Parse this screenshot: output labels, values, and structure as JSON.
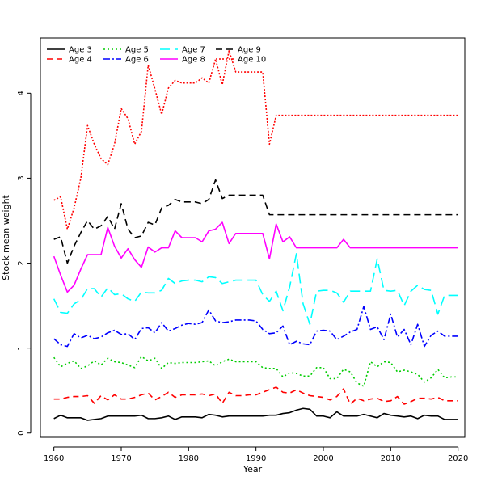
{
  "chart_data": {
    "type": "line",
    "xlabel": "Year",
    "ylabel": "Stock mean weight",
    "xlim": [
      1958,
      2021
    ],
    "ylim": [
      -0.05,
      4.65
    ],
    "xticks": [
      1960,
      1970,
      1980,
      1990,
      2000,
      2010,
      2020
    ],
    "yticks": [
      0,
      1,
      2,
      3,
      4
    ],
    "grid": false,
    "legend_position": "top-left",
    "x": [
      1960,
      1961,
      1962,
      1963,
      1964,
      1965,
      1966,
      1967,
      1968,
      1969,
      1970,
      1971,
      1972,
      1973,
      1974,
      1975,
      1976,
      1977,
      1978,
      1979,
      1980,
      1981,
      1982,
      1983,
      1984,
      1985,
      1986,
      1987,
      1988,
      1989,
      1990,
      1991,
      1992,
      1993,
      1994,
      1995,
      1996,
      1997,
      1998,
      1999,
      2000,
      2001,
      2002,
      2003,
      2004,
      2005,
      2006,
      2007,
      2008,
      2009,
      2010,
      2011,
      2012,
      2013,
      2014,
      2015,
      2016,
      2017,
      2018,
      2019,
      2020
    ],
    "series": [
      {
        "name": "Age 3",
        "color": "#000000",
        "dash": "solid",
        "values": [
          0.17,
          0.21,
          0.18,
          0.18,
          0.18,
          0.15,
          0.16,
          0.17,
          0.2,
          0.2,
          0.2,
          0.2,
          0.2,
          0.21,
          0.17,
          0.17,
          0.18,
          0.2,
          0.16,
          0.19,
          0.19,
          0.19,
          0.18,
          0.22,
          0.21,
          0.19,
          0.2,
          0.2,
          0.2,
          0.2,
          0.2,
          0.2,
          0.21,
          0.21,
          0.23,
          0.24,
          0.27,
          0.29,
          0.28,
          0.2,
          0.2,
          0.18,
          0.25,
          0.2,
          0.2,
          0.2,
          0.22,
          0.2,
          0.18,
          0.23,
          0.21,
          0.2,
          0.19,
          0.2,
          0.17,
          0.21,
          0.2,
          0.2,
          0.16,
          0.16,
          0.16
        ]
      },
      {
        "name": "Age 4",
        "color": "#ff0000",
        "dash": "7,5",
        "values": [
          0.4,
          0.4,
          0.42,
          0.43,
          0.43,
          0.44,
          0.35,
          0.44,
          0.39,
          0.45,
          0.4,
          0.4,
          0.42,
          0.45,
          0.47,
          0.39,
          0.43,
          0.48,
          0.42,
          0.45,
          0.45,
          0.45,
          0.46,
          0.44,
          0.46,
          0.35,
          0.48,
          0.44,
          0.44,
          0.45,
          0.45,
          0.48,
          0.51,
          0.54,
          0.48,
          0.47,
          0.51,
          0.47,
          0.44,
          0.43,
          0.42,
          0.39,
          0.43,
          0.52,
          0.34,
          0.41,
          0.38,
          0.4,
          0.41,
          0.37,
          0.38,
          0.43,
          0.34,
          0.37,
          0.41,
          0.41,
          0.4,
          0.42,
          0.38,
          0.38,
          0.38
        ]
      },
      {
        "name": "Age 5",
        "color": "#00cc00",
        "dash": "2,3",
        "values": [
          0.89,
          0.78,
          0.82,
          0.85,
          0.76,
          0.79,
          0.85,
          0.8,
          0.88,
          0.84,
          0.83,
          0.8,
          0.77,
          0.9,
          0.85,
          0.88,
          0.76,
          0.83,
          0.82,
          0.83,
          0.83,
          0.83,
          0.84,
          0.85,
          0.79,
          0.84,
          0.87,
          0.84,
          0.84,
          0.84,
          0.84,
          0.77,
          0.76,
          0.76,
          0.66,
          0.71,
          0.7,
          0.67,
          0.67,
          0.77,
          0.77,
          0.64,
          0.64,
          0.75,
          0.72,
          0.59,
          0.55,
          0.84,
          0.78,
          0.84,
          0.83,
          0.72,
          0.74,
          0.72,
          0.69,
          0.6,
          0.65,
          0.75,
          0.65,
          0.66,
          0.66
        ]
      },
      {
        "name": "Age 6",
        "color": "#0000ff",
        "dash": "8,3,2,3",
        "values": [
          1.11,
          1.04,
          1.02,
          1.17,
          1.12,
          1.15,
          1.11,
          1.13,
          1.18,
          1.21,
          1.16,
          1.17,
          1.1,
          1.23,
          1.24,
          1.18,
          1.3,
          1.2,
          1.23,
          1.27,
          1.29,
          1.28,
          1.3,
          1.45,
          1.32,
          1.3,
          1.31,
          1.33,
          1.33,
          1.33,
          1.32,
          1.22,
          1.17,
          1.18,
          1.26,
          1.04,
          1.08,
          1.05,
          1.04,
          1.2,
          1.21,
          1.2,
          1.1,
          1.14,
          1.19,
          1.22,
          1.49,
          1.22,
          1.25,
          1.1,
          1.4,
          1.13,
          1.22,
          1.04,
          1.28,
          1.02,
          1.15,
          1.2,
          1.14,
          1.14,
          1.14
        ]
      },
      {
        "name": "Age 7",
        "color": "#00ffff",
        "dash": "12,6",
        "values": [
          1.58,
          1.42,
          1.41,
          1.52,
          1.57,
          1.7,
          1.7,
          1.6,
          1.71,
          1.63,
          1.64,
          1.58,
          1.55,
          1.66,
          1.65,
          1.65,
          1.68,
          1.82,
          1.76,
          1.79,
          1.8,
          1.8,
          1.78,
          1.84,
          1.83,
          1.76,
          1.78,
          1.8,
          1.8,
          1.8,
          1.8,
          1.63,
          1.55,
          1.67,
          1.44,
          1.72,
          2.11,
          1.52,
          1.28,
          1.67,
          1.68,
          1.68,
          1.65,
          1.54,
          1.67,
          1.67,
          1.67,
          1.67,
          2.05,
          1.68,
          1.67,
          1.68,
          1.5,
          1.67,
          1.74,
          1.69,
          1.68,
          1.4,
          1.62,
          1.62,
          1.62
        ]
      },
      {
        "name": "Age 8",
        "color": "#ff00ff",
        "dash": "solid",
        "values": [
          2.08,
          1.86,
          1.66,
          1.74,
          1.93,
          2.1,
          2.1,
          2.1,
          2.42,
          2.2,
          2.06,
          2.17,
          2.04,
          1.95,
          2.19,
          2.13,
          2.18,
          2.18,
          2.38,
          2.3,
          2.3,
          2.3,
          2.25,
          2.38,
          2.4,
          2.48,
          2.23,
          2.35,
          2.35,
          2.35,
          2.35,
          2.35,
          2.05,
          2.46,
          2.25,
          2.31,
          2.18,
          2.18,
          2.18,
          2.18,
          2.18,
          2.18,
          2.18,
          2.28,
          2.18,
          2.18,
          2.18,
          2.18,
          2.18,
          2.18,
          2.18,
          2.18,
          2.18,
          2.18,
          2.18,
          2.18,
          2.18,
          2.18,
          2.18,
          2.18,
          2.18
        ]
      },
      {
        "name": "Age 9",
        "color": "#000000",
        "dash": "8,5",
        "values": [
          2.28,
          2.31,
          2.0,
          2.2,
          2.36,
          2.5,
          2.4,
          2.44,
          2.55,
          2.4,
          2.7,
          2.4,
          2.3,
          2.32,
          2.48,
          2.45,
          2.65,
          2.68,
          2.75,
          2.72,
          2.72,
          2.72,
          2.7,
          2.75,
          2.98,
          2.76,
          2.8,
          2.8,
          2.8,
          2.8,
          2.8,
          2.8,
          2.57,
          2.57,
          2.57,
          2.57,
          2.57,
          2.57,
          2.57,
          2.57,
          2.57,
          2.57,
          2.57,
          2.57,
          2.57,
          2.57,
          2.57,
          2.57,
          2.57,
          2.57,
          2.57,
          2.57,
          2.57,
          2.57,
          2.57,
          2.57,
          2.57,
          2.57,
          2.57,
          2.57,
          2.57
        ]
      },
      {
        "name": "Age 10",
        "color": "#ff0000",
        "dash": "2,2",
        "values": [
          2.74,
          2.78,
          2.4,
          2.65,
          3.0,
          3.62,
          3.4,
          3.23,
          3.16,
          3.4,
          3.82,
          3.7,
          3.4,
          3.55,
          4.33,
          4.05,
          3.75,
          4.06,
          4.15,
          4.12,
          4.12,
          4.12,
          4.18,
          4.12,
          4.4,
          4.1,
          4.5,
          4.25,
          4.25,
          4.25,
          4.25,
          4.25,
          3.4,
          3.74,
          3.74,
          3.74,
          3.74,
          3.74,
          3.74,
          3.74,
          3.74,
          3.74,
          3.74,
          3.74,
          3.74,
          3.74,
          3.74,
          3.74,
          3.74,
          3.74,
          3.74,
          3.74,
          3.74,
          3.74,
          3.74,
          3.74,
          3.74,
          3.74,
          3.74,
          3.74,
          3.74
        ]
      }
    ]
  }
}
